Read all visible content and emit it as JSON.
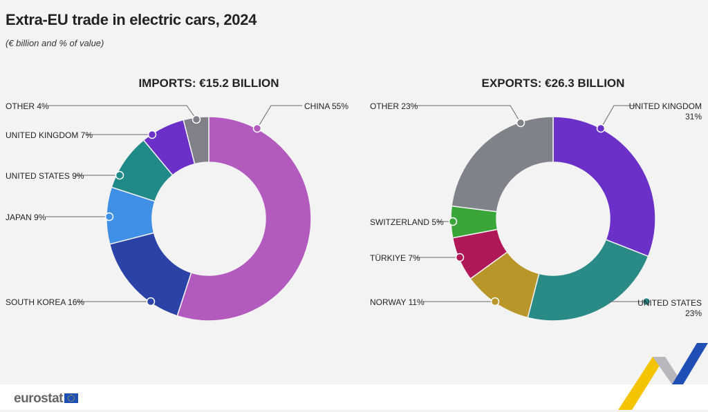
{
  "title": "Extra-EU trade in electric cars, 2024",
  "subtitle": "(€ billion and % of value)",
  "footer": {
    "logo": "eurostat"
  },
  "chart_data": [
    {
      "type": "pie",
      "donut": true,
      "title": "IMPORTS: €15.2 BILLION",
      "total_billion_eur": 15.2,
      "categories": [
        "CHINA",
        "SOUTH KOREA",
        "JAPAN",
        "UNITED STATES",
        "UNITED KINGDOM",
        "OTHER"
      ],
      "values": [
        55,
        16,
        9,
        9,
        7,
        4
      ],
      "labels": [
        "CHINA 55%",
        "SOUTH KOREA 16%",
        "JAPAN 9%",
        "UNITED STATES 9%",
        "UNITED KINGDOM 7%",
        "OTHER 4%"
      ],
      "colors": [
        "#b35abf",
        "#2b43a6",
        "#3f8fe6",
        "#1f8a87",
        "#6a30c8",
        "#808088"
      ]
    },
    {
      "type": "pie",
      "donut": true,
      "title": "EXPORTS: €26.3 BILLION",
      "total_billion_eur": 26.3,
      "categories": [
        "UNITED KINGDOM",
        "UNITED STATES",
        "NORWAY",
        "TÜRKIYE",
        "SWITZERLAND",
        "OTHER"
      ],
      "values": [
        31,
        23,
        11,
        7,
        5,
        23
      ],
      "labels": [
        "UNITED KINGDOM\n31%",
        "UNITED STATES\n23%",
        "NORWAY 11%",
        "TÜRKIYE 7%",
        "SWITZERLAND 5%",
        "OTHER 23%"
      ],
      "colors": [
        "#6a30c8",
        "#2a8a86",
        "#b8962a",
        "#b0185a",
        "#3aa63a",
        "#80828a"
      ]
    }
  ]
}
